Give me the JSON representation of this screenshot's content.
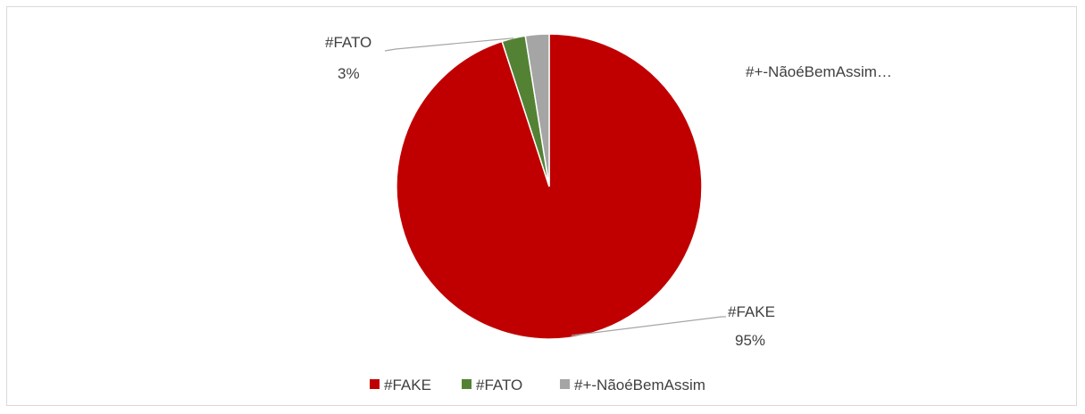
{
  "chart_data": {
    "type": "pie",
    "categories": [
      "#FAKE",
      "#FATO",
      "#+-NãoéBemAssim"
    ],
    "values": [
      95,
      2.5,
      2.5
    ],
    "data_labels": [
      {
        "category": "#FAKE",
        "percent": "95%"
      },
      {
        "category": "#FATO",
        "percent": "3%"
      },
      {
        "category": "#+-NãoéBemAssim…",
        "percent": ""
      }
    ],
    "colors": [
      "#c00000",
      "#548235",
      "#a5a5a5"
    ],
    "legend": {
      "placement": "bottom",
      "entries": [
        "#FAKE",
        "#FATO",
        "#+-NãoéBemAssim"
      ]
    },
    "start_angle": "top",
    "direction": "clockwise"
  }
}
